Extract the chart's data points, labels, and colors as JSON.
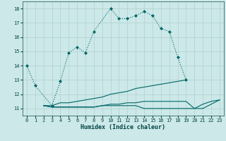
{
  "title": "",
  "xlabel": "Humidex (Indice chaleur)",
  "bg_color": "#cce8e8",
  "grid_color": "#b0d0d0",
  "line_color": "#006666",
  "xlim": [
    -0.5,
    23.5
  ],
  "ylim": [
    10.5,
    18.5
  ],
  "yticks": [
    11,
    12,
    13,
    14,
    15,
    16,
    17,
    18
  ],
  "xticks": [
    0,
    1,
    2,
    3,
    4,
    5,
    6,
    7,
    8,
    9,
    10,
    11,
    12,
    13,
    14,
    15,
    16,
    17,
    18,
    19,
    20,
    21,
    22,
    23
  ],
  "curve1_x": [
    0,
    1,
    3,
    4,
    5,
    6,
    7,
    8,
    10,
    11,
    12,
    13,
    14,
    15,
    16,
    17,
    18,
    19
  ],
  "curve1_y": [
    14.0,
    12.6,
    11.2,
    12.9,
    14.9,
    15.3,
    14.9,
    16.4,
    18.0,
    17.3,
    17.3,
    17.5,
    17.8,
    17.5,
    16.6,
    16.4,
    14.6,
    13.0
  ],
  "curve2_x": [
    2,
    3,
    4,
    5,
    6,
    7,
    8,
    9,
    10,
    11,
    12,
    13,
    14,
    15,
    16,
    17,
    18,
    19
  ],
  "curve2_y": [
    11.2,
    11.2,
    11.4,
    11.4,
    11.5,
    11.6,
    11.7,
    11.8,
    12.0,
    12.1,
    12.2,
    12.4,
    12.5,
    12.6,
    12.7,
    12.8,
    12.9,
    13.0
  ],
  "curve3_x": [
    2,
    3,
    4,
    5,
    6,
    7,
    8,
    9,
    10,
    11,
    12,
    13,
    14,
    15,
    16,
    17,
    18,
    19,
    20,
    21,
    22,
    23
  ],
  "curve3_y": [
    11.2,
    11.1,
    11.1,
    11.1,
    11.1,
    11.1,
    11.1,
    11.2,
    11.2,
    11.2,
    11.2,
    11.2,
    11.0,
    11.0,
    11.0,
    11.0,
    11.0,
    11.0,
    11.0,
    11.3,
    11.5,
    11.6
  ],
  "curve4_x": [
    2,
    3,
    4,
    5,
    6,
    7,
    8,
    9,
    10,
    11,
    12,
    13,
    14,
    15,
    16,
    17,
    18,
    19,
    20,
    21,
    22,
    23
  ],
  "curve4_y": [
    11.2,
    11.1,
    11.1,
    11.1,
    11.1,
    11.1,
    11.1,
    11.2,
    11.3,
    11.3,
    11.4,
    11.4,
    11.5,
    11.5,
    11.5,
    11.5,
    11.5,
    11.5,
    11.0,
    11.0,
    11.3,
    11.6
  ]
}
